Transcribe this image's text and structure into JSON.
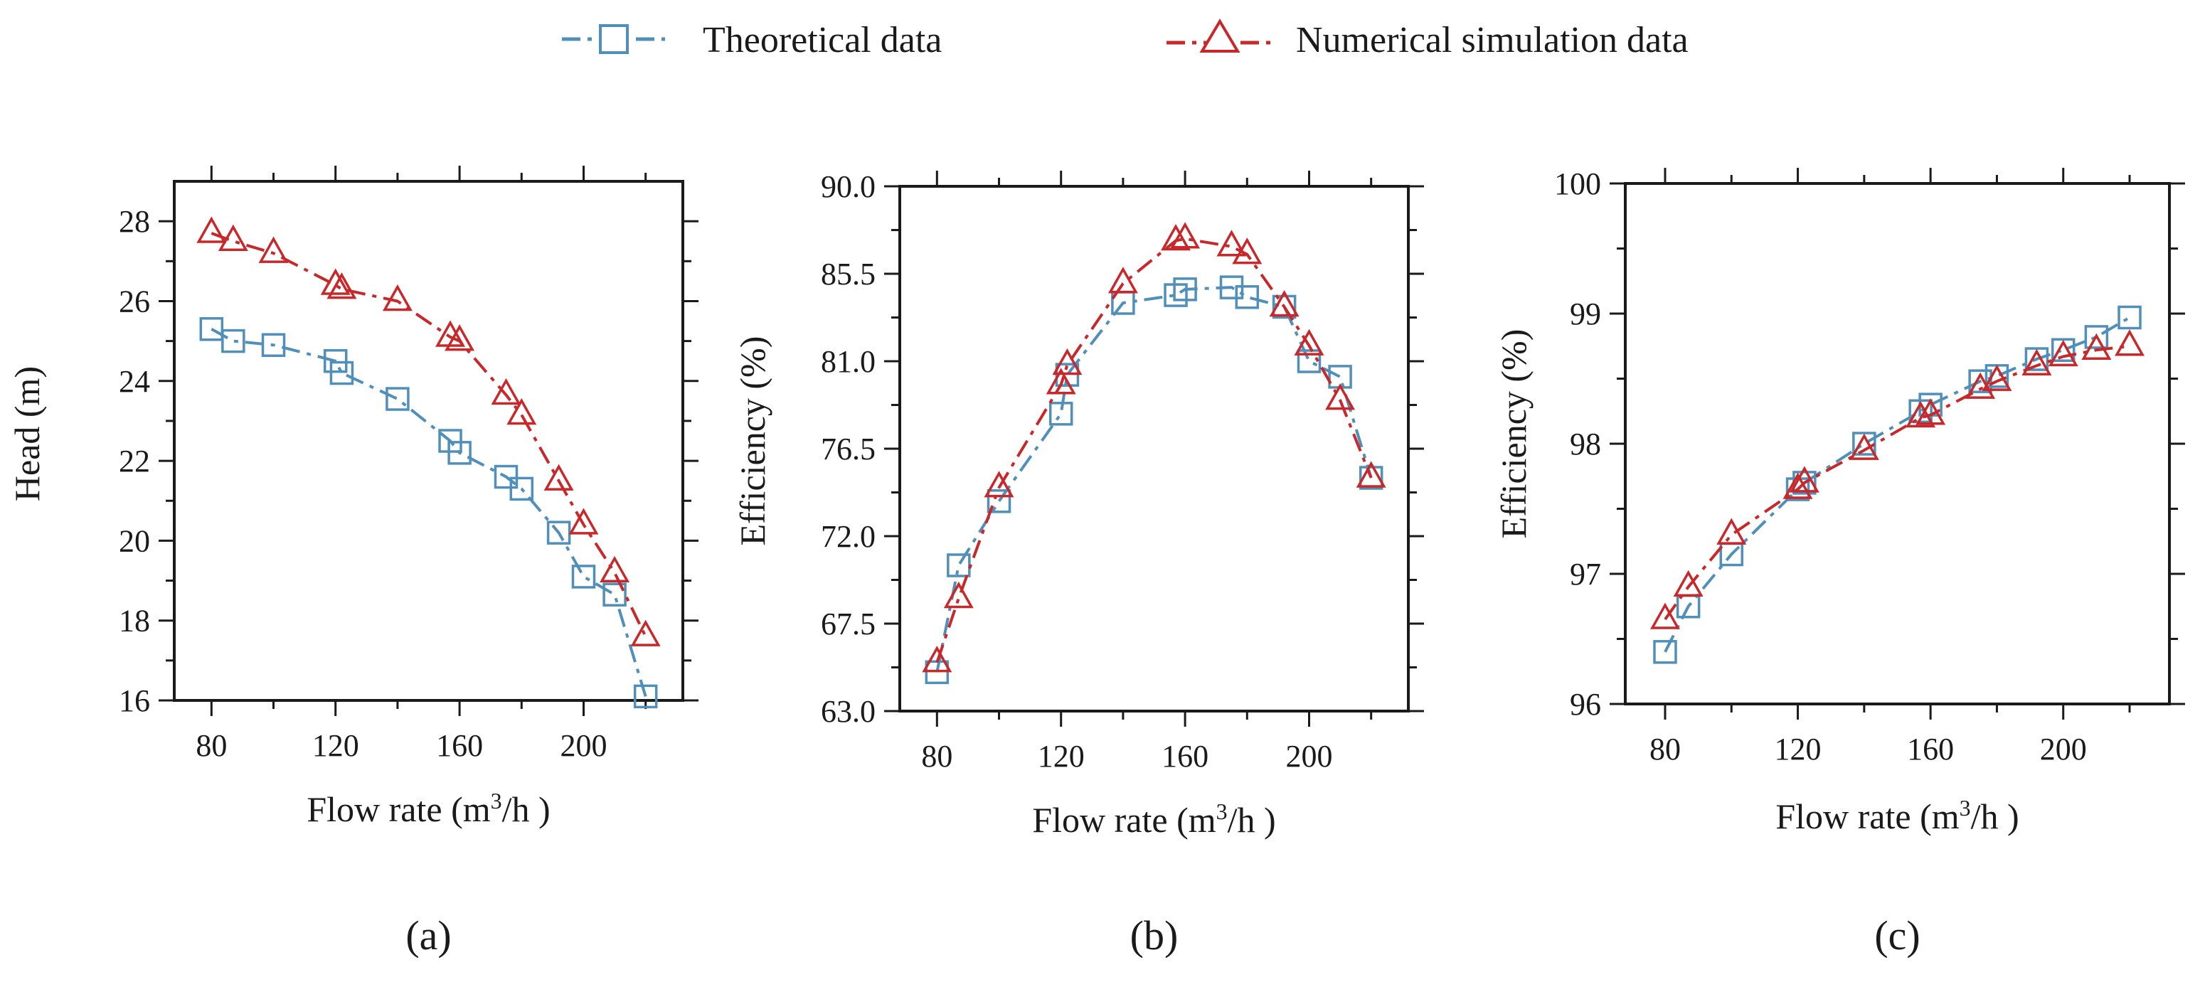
{
  "legend": {
    "theoretical": "Theoretical data",
    "numerical": "Numerical simulation data"
  },
  "colors": {
    "theoretical": "#4f8fba",
    "numerical": "#c8282a"
  },
  "chart_data": [
    {
      "type": "line",
      "panel": "(a)",
      "title": "",
      "xlabel": "Flow rate (m3/h )",
      "ylabel": "Head (m)",
      "xlim": [
        68,
        232
      ],
      "ylim": [
        16,
        29
      ],
      "xticks": [
        80,
        120,
        160,
        200
      ],
      "yticks": [
        16,
        18,
        20,
        22,
        24,
        26,
        28
      ],
      "ytick_labels": [
        "16",
        "18",
        "20",
        "22",
        "24",
        "26",
        "28"
      ],
      "series": [
        {
          "name": "Theoretical data",
          "marker": "square",
          "x": [
            80,
            87,
            100,
            120,
            122,
            140,
            157,
            160,
            175,
            180,
            192,
            200,
            210,
            220
          ],
          "y": [
            25.3,
            25.0,
            24.9,
            24.5,
            24.2,
            23.55,
            22.5,
            22.2,
            21.6,
            21.3,
            20.2,
            19.1,
            18.65,
            16.1
          ]
        },
        {
          "name": "Numerical simulation data",
          "marker": "triangle",
          "x": [
            80,
            87,
            100,
            120,
            122,
            140,
            157,
            160,
            175,
            180,
            192,
            200,
            210,
            220
          ],
          "y": [
            27.7,
            27.5,
            27.2,
            26.4,
            26.3,
            26.0,
            25.1,
            25.0,
            23.65,
            23.15,
            21.5,
            20.4,
            19.2,
            17.6
          ]
        }
      ]
    },
    {
      "type": "line",
      "panel": "(b)",
      "title": "",
      "xlabel": "Flow rate (m3/h )",
      "ylabel": "Efficiency (%)",
      "xlim": [
        68,
        232
      ],
      "ylim": [
        63.0,
        90.0
      ],
      "xticks": [
        80,
        120,
        160,
        200
      ],
      "yticks": [
        63.0,
        67.5,
        72.0,
        76.5,
        81.0,
        85.5,
        90.0
      ],
      "ytick_labels": [
        "63.0",
        "67.5",
        "72.0",
        "76.5",
        "81.0",
        "85.5",
        "90.0"
      ],
      "series": [
        {
          "name": "Theoretical data",
          "marker": "square",
          "x": [
            80,
            87,
            100,
            120,
            122,
            140,
            157,
            160,
            175,
            180,
            192,
            200,
            210,
            220
          ],
          "y": [
            65.0,
            70.5,
            73.8,
            78.3,
            80.3,
            84.0,
            84.4,
            84.7,
            84.8,
            84.3,
            83.8,
            81.0,
            80.2,
            75.0
          ]
        },
        {
          "name": "Numerical simulation data",
          "marker": "triangle",
          "x": [
            80,
            87,
            100,
            120,
            122,
            140,
            157,
            160,
            175,
            180,
            192,
            200,
            210,
            220
          ],
          "y": [
            65.5,
            68.8,
            74.5,
            79.8,
            80.8,
            85.0,
            87.2,
            87.3,
            86.9,
            86.5,
            83.8,
            81.8,
            79.0,
            75.0
          ]
        }
      ]
    },
    {
      "type": "line",
      "panel": "(c)",
      "title": "",
      "xlabel": "Flow rate (m3/h )",
      "ylabel": "Efficiency (%)",
      "xlim": [
        68,
        232
      ],
      "ylim": [
        96,
        100
      ],
      "xticks": [
        80,
        120,
        160,
        200
      ],
      "yticks": [
        96,
        97,
        98,
        99,
        100
      ],
      "ytick_labels": [
        "96",
        "97",
        "98",
        "99",
        "100"
      ],
      "series": [
        {
          "name": "Theoretical data",
          "marker": "square",
          "x": [
            80,
            87,
            100,
            120,
            122,
            140,
            157,
            160,
            175,
            180,
            192,
            200,
            210,
            220
          ],
          "y": [
            96.4,
            96.75,
            97.15,
            97.65,
            97.7,
            98.0,
            98.25,
            98.3,
            98.48,
            98.52,
            98.65,
            98.72,
            98.82,
            98.97
          ]
        },
        {
          "name": "Numerical simulation data",
          "marker": "triangle",
          "x": [
            80,
            87,
            100,
            120,
            122,
            140,
            157,
            160,
            175,
            180,
            192,
            200,
            210,
            220
          ],
          "y": [
            96.65,
            96.9,
            97.3,
            97.65,
            97.7,
            97.95,
            98.2,
            98.22,
            98.42,
            98.48,
            98.6,
            98.67,
            98.72,
            98.75
          ]
        }
      ]
    }
  ]
}
